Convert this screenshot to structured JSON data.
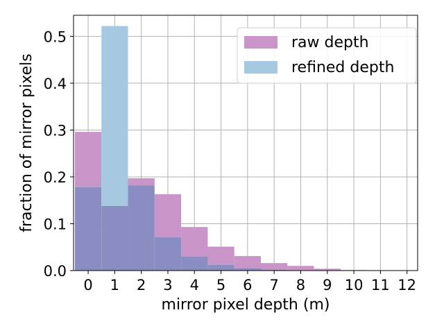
{
  "chart_data": {
    "type": "bar",
    "xlabel": "mirror pixel depth (m)",
    "ylabel": "fraction of mirror pixels",
    "categories": [
      "0",
      "1",
      "2",
      "3",
      "4",
      "5",
      "6",
      "7",
      "8",
      "9",
      "10",
      "11",
      "12"
    ],
    "xlim": [
      -0.55,
      12.4
    ],
    "ylim": [
      0,
      0.545
    ],
    "yticks": [
      0.0,
      0.1,
      0.2,
      0.3,
      0.4,
      0.5
    ],
    "ytick_labels": [
      "0.0",
      "0.1",
      "0.2",
      "0.3",
      "0.4",
      "0.5"
    ],
    "grid": true,
    "legend_position": "top-right",
    "bins": [
      [
        -0.5,
        0.5
      ],
      [
        0.5,
        1.5
      ],
      [
        1.5,
        2.5
      ],
      [
        2.5,
        3.5
      ],
      [
        3.5,
        4.5
      ],
      [
        4.5,
        5.5
      ],
      [
        5.5,
        6.5
      ],
      [
        6.5,
        7.5
      ],
      [
        7.5,
        8.5
      ],
      [
        8.5,
        9.5
      ],
      [
        9.5,
        10.5
      ],
      [
        10.5,
        11.5
      ],
      [
        11.5,
        12.5
      ]
    ],
    "series": [
      {
        "name": "raw depth",
        "color": "#c994c7",
        "values": [
          0.296,
          0.138,
          0.197,
          0.163,
          0.093,
          0.051,
          0.031,
          0.016,
          0.01,
          0.004,
          0.001,
          0.0005,
          0.0003
        ]
      },
      {
        "name": "refined depth",
        "color": "#a6c8e0",
        "values": [
          0.178,
          0.522,
          0.182,
          0.071,
          0.03,
          0.012,
          0.005,
          0.002,
          0.001,
          0.0005,
          0.0002,
          0.0001,
          0.0001
        ]
      }
    ],
    "overlap_color": "#8a8dc2"
  }
}
